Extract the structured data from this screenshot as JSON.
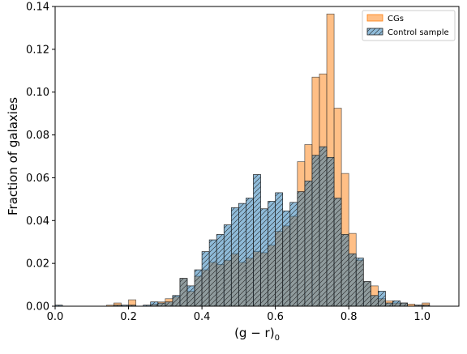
{
  "chart_data": {
    "type": "bar",
    "subtype": "overlapping-histogram",
    "xlabel_text": "(g − r)",
    "xlabel_sub": "0",
    "ylabel": "Fraction of galaxies",
    "xlim": [
      0.0,
      1.1
    ],
    "ylim": [
      0.0,
      0.14
    ],
    "xticks": [
      0.0,
      0.2,
      0.4,
      0.6,
      0.8,
      1.0
    ],
    "xtick_labels": [
      "0.0",
      "0.2",
      "0.4",
      "0.6",
      "0.8",
      "1.0"
    ],
    "yticks": [
      0.0,
      0.02,
      0.04,
      0.06,
      0.08,
      0.1,
      0.12,
      0.14
    ],
    "ytick_labels": [
      "0.00",
      "0.02",
      "0.04",
      "0.06",
      "0.08",
      "0.10",
      "0.12",
      "0.14"
    ],
    "grid": false,
    "legend_position": "top-right",
    "bin_width": 0.02,
    "bins_start": [
      0.0,
      0.02,
      0.04,
      0.06,
      0.08,
      0.1,
      0.12,
      0.14,
      0.16,
      0.18,
      0.2,
      0.22,
      0.24,
      0.26,
      0.28,
      0.3,
      0.32,
      0.34,
      0.36,
      0.38,
      0.4,
      0.42,
      0.44,
      0.46,
      0.48,
      0.5,
      0.52,
      0.54,
      0.56,
      0.58,
      0.6,
      0.62,
      0.64,
      0.66,
      0.68,
      0.7,
      0.72,
      0.74,
      0.76,
      0.78,
      0.8,
      0.82,
      0.84,
      0.86,
      0.88,
      0.9,
      0.92,
      0.94,
      0.96,
      0.98,
      1.0,
      1.02,
      1.04,
      1.06,
      1.08
    ],
    "series": [
      {
        "name": "CGs",
        "color": "#ff7f0e",
        "values": [
          0,
          0,
          0,
          0,
          0,
          0,
          0,
          0.0005,
          0.0015,
          0,
          0.003,
          0,
          0,
          0.001,
          0.002,
          0.0035,
          0.0045,
          0.013,
          0.007,
          0.014,
          0.017,
          0.0205,
          0.0195,
          0.0215,
          0.0245,
          0.0205,
          0.0225,
          0.0255,
          0.025,
          0.0285,
          0.035,
          0.0375,
          0.042,
          0.0675,
          0.0755,
          0.107,
          0.1085,
          0.1365,
          0.0925,
          0.062,
          0.034,
          0.0215,
          0.0115,
          0.0095,
          0.0035,
          0.0025,
          0.0015,
          0.0015,
          0.001,
          0.0005,
          0.0015,
          0,
          0,
          0,
          0
        ]
      },
      {
        "name": "Control sample",
        "color": "#1f77b4",
        "values": [
          0.0005,
          0,
          0,
          0,
          0,
          0,
          0,
          0,
          0.0005,
          0.0005,
          0.0005,
          0,
          0.0005,
          0.002,
          0.0015,
          0.002,
          0.005,
          0.013,
          0.0095,
          0.017,
          0.0255,
          0.031,
          0.0335,
          0.038,
          0.046,
          0.048,
          0.0505,
          0.0615,
          0.0455,
          0.049,
          0.053,
          0.0445,
          0.0485,
          0.0535,
          0.0585,
          0.0705,
          0.0745,
          0.0695,
          0.0505,
          0.0335,
          0.0245,
          0.0225,
          0.0115,
          0.005,
          0.007,
          0.0015,
          0.0025,
          0.0015,
          0,
          0.0005,
          0.0005,
          0,
          0,
          0,
          0
        ]
      }
    ]
  }
}
